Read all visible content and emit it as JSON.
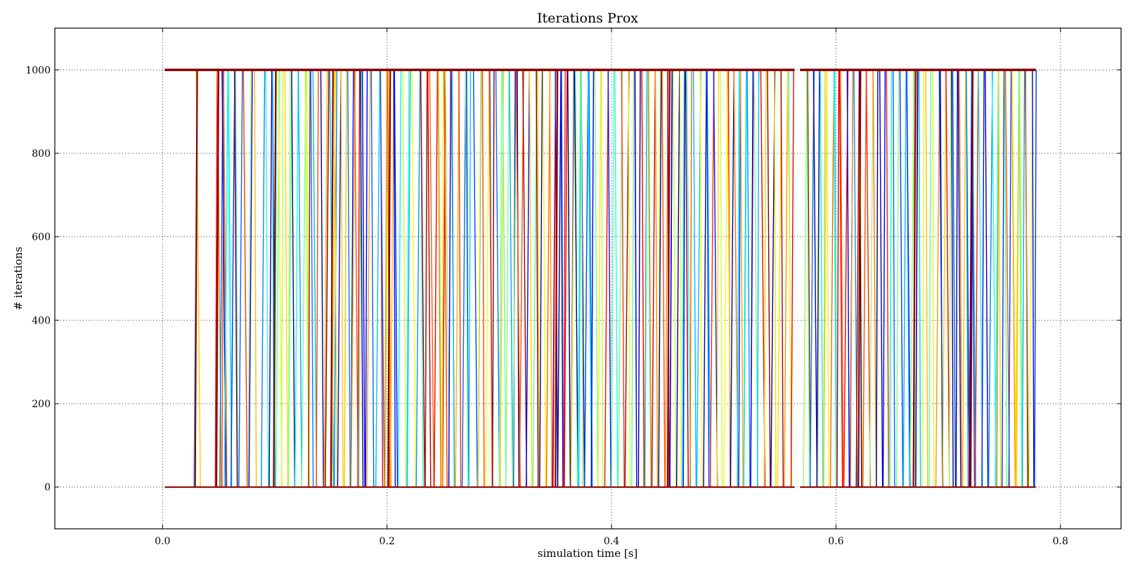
{
  "chart_data": {
    "type": "line",
    "title": "Iterations Prox",
    "xlabel": "simulation time [s]",
    "ylabel": "# iterations",
    "xlim": [
      -0.096,
      0.854
    ],
    "ylim": [
      -100,
      1100
    ],
    "xticks": [
      0.0,
      0.2,
      0.4,
      0.6,
      0.8
    ],
    "xtick_labels": [
      "0.0",
      "0.2",
      "0.4",
      "0.6",
      "0.8"
    ],
    "yticks": [
      0,
      200,
      400,
      600,
      800,
      1000
    ],
    "ytick_labels": [
      "0",
      "200",
      "400",
      "600",
      "800",
      "1000"
    ],
    "grid": true,
    "legend": "none",
    "colormap": "jet",
    "note_series": "many series; each alternates between 0 and 1000 iterations",
    "segments": [
      {
        "x_start": 0.002,
        "x_end": 0.563
      },
      {
        "x_start": 0.568,
        "x_end": 0.778
      }
    ],
    "levels": [
      0,
      1000
    ],
    "transitions": {
      "segment_1": [
        0.028,
        0.03,
        0.047,
        0.049,
        0.051,
        0.053,
        0.055,
        0.058,
        0.061,
        0.064,
        0.068,
        0.072,
        0.077,
        0.082,
        0.088,
        0.092,
        0.095,
        0.098,
        0.101,
        0.103,
        0.106,
        0.109,
        0.112,
        0.115,
        0.118,
        0.121,
        0.124,
        0.127,
        0.13,
        0.134,
        0.137,
        0.141,
        0.145,
        0.149,
        0.151,
        0.153,
        0.156,
        0.159,
        0.162,
        0.165,
        0.168,
        0.171,
        0.174,
        0.178,
        0.182,
        0.186,
        0.19,
        0.194,
        0.198,
        0.201,
        0.203,
        0.206,
        0.21,
        0.214,
        0.218,
        0.222,
        0.226,
        0.23,
        0.234,
        0.238,
        0.242,
        0.246,
        0.249,
        0.252,
        0.255,
        0.258,
        0.261,
        0.264,
        0.267,
        0.27,
        0.273,
        0.277,
        0.281,
        0.285,
        0.288,
        0.291,
        0.294,
        0.297,
        0.3,
        0.303,
        0.306,
        0.309,
        0.312,
        0.315,
        0.318,
        0.321,
        0.324,
        0.327,
        0.33,
        0.333,
        0.336,
        0.339,
        0.342,
        0.345,
        0.348,
        0.35,
        0.352,
        0.355,
        0.358,
        0.361,
        0.364,
        0.367,
        0.37,
        0.373,
        0.376,
        0.379,
        0.382,
        0.385,
        0.388,
        0.391,
        0.394,
        0.397,
        0.4,
        0.403,
        0.406,
        0.409,
        0.412,
        0.415,
        0.418,
        0.421,
        0.424,
        0.427,
        0.43,
        0.433,
        0.436,
        0.439,
        0.442,
        0.445,
        0.448,
        0.45,
        0.452,
        0.455,
        0.458,
        0.461,
        0.464,
        0.467,
        0.47,
        0.473,
        0.476,
        0.479,
        0.482,
        0.485,
        0.488,
        0.491,
        0.494,
        0.497,
        0.5,
        0.503,
        0.506,
        0.509,
        0.512,
        0.515,
        0.518,
        0.521,
        0.524,
        0.527,
        0.53,
        0.533,
        0.536,
        0.539,
        0.542,
        0.545,
        0.548,
        0.551,
        0.554,
        0.557,
        0.56
      ],
      "segment_2": [
        0.571,
        0.574,
        0.577,
        0.58,
        0.583,
        0.586,
        0.589,
        0.592,
        0.595,
        0.598,
        0.601,
        0.604,
        0.607,
        0.61,
        0.613,
        0.616,
        0.618,
        0.621,
        0.624,
        0.627,
        0.63,
        0.633,
        0.636,
        0.639,
        0.642,
        0.645,
        0.648,
        0.651,
        0.654,
        0.657,
        0.66,
        0.663,
        0.666,
        0.669,
        0.671,
        0.674,
        0.677,
        0.68,
        0.683,
        0.686,
        0.689,
        0.692,
        0.695,
        0.698,
        0.701,
        0.704,
        0.707,
        0.71,
        0.713,
        0.716,
        0.719,
        0.721,
        0.724,
        0.727,
        0.73,
        0.733,
        0.736,
        0.739,
        0.742,
        0.745,
        0.748,
        0.751,
        0.754,
        0.757,
        0.76,
        0.763,
        0.766,
        0.769,
        0.772,
        0.775
      ]
    }
  }
}
